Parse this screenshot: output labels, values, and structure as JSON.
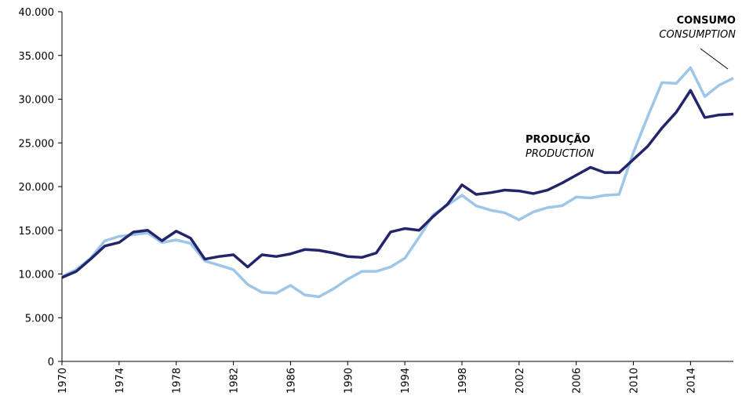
{
  "chart_data": {
    "type": "line",
    "x": [
      1970,
      1971,
      1972,
      1973,
      1974,
      1975,
      1976,
      1977,
      1978,
      1979,
      1980,
      1981,
      1982,
      1983,
      1984,
      1985,
      1986,
      1987,
      1988,
      1989,
      1990,
      1991,
      1992,
      1993,
      1994,
      1995,
      1996,
      1997,
      1998,
      1999,
      2000,
      2001,
      2002,
      2003,
      2004,
      2005,
      2006,
      2007,
      2008,
      2009,
      2010,
      2011,
      2012,
      2013,
      2014,
      2015,
      2016,
      2017
    ],
    "xlim": [
      1970,
      2017
    ],
    "xticks": [
      1970,
      1974,
      1978,
      1982,
      1986,
      1990,
      1994,
      1998,
      2002,
      2006,
      2010,
      2014
    ],
    "ylim": [
      0,
      40000
    ],
    "yticks": [
      0,
      {
        "value": 5000,
        "label": "5.000"
      },
      {
        "value": 10000,
        "label": "10.000"
      },
      {
        "value": 15000,
        "label": "15.000"
      },
      {
        "value": 20000,
        "label": "20.000"
      },
      {
        "value": 25000,
        "label": "25.000"
      },
      {
        "value": 30000,
        "label": "30.000"
      },
      {
        "value": 35000,
        "label": "35.000"
      },
      {
        "value": 40000,
        "label": "40.000"
      }
    ],
    "series": [
      {
        "name": "PRODUÇÃO",
        "subname": "PRODUCTION",
        "color": "#24246b",
        "values": [
          9600,
          10300,
          11700,
          13200,
          13600,
          14800,
          15000,
          13800,
          14900,
          14100,
          11700,
          12000,
          12200,
          10800,
          12200,
          12000,
          12300,
          12800,
          12700,
          12400,
          12000,
          11900,
          12400,
          14800,
          15200,
          15000,
          16600,
          18000,
          20200,
          19100,
          19300,
          19600,
          19500,
          19200,
          19600,
          20400,
          21300,
          22200,
          21600,
          21600,
          23100,
          24600,
          26700,
          28500,
          31000,
          27900,
          28200,
          28300
        ]
      },
      {
        "name": "CONSUMO",
        "subname": "CONSUMPTION",
        "color": "#9dc6e8",
        "values": [
          9700,
          10500,
          11800,
          13800,
          14300,
          14500,
          14700,
          13600,
          13900,
          13500,
          11500,
          11000,
          10500,
          8800,
          7900,
          7800,
          8700,
          7600,
          7400,
          8300,
          9400,
          10300,
          10300,
          10800,
          11800,
          14200,
          16800,
          17900,
          19000,
          17800,
          17300,
          17000,
          16200,
          17100,
          17600,
          17800,
          18800,
          18700,
          19000,
          19100,
          23900,
          28000,
          31900,
          31800,
          33600,
          30300,
          31600,
          32400
        ]
      }
    ]
  }
}
